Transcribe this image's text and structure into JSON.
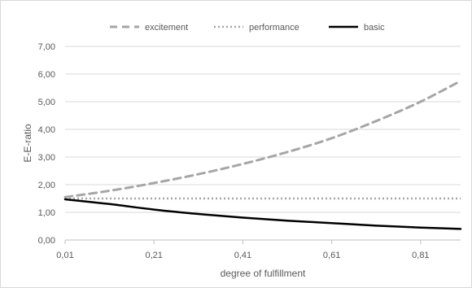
{
  "chart_data": {
    "type": "line",
    "xlabel": "degree of fulfillment",
    "ylabel": "E-E-ratio",
    "xlim": [
      0.01,
      0.9
    ],
    "ylim": [
      0,
      7
    ],
    "x_ticks": [
      "0,01",
      "0,21",
      "0,41",
      "0,61",
      "0,81"
    ],
    "x_tick_values": [
      0.01,
      0.21,
      0.41,
      0.61,
      0.81
    ],
    "y_ticks": [
      "0,00",
      "1,00",
      "2,00",
      "3,00",
      "4,00",
      "5,00",
      "6,00",
      "7,00"
    ],
    "y_tick_values": [
      0,
      1,
      2,
      3,
      4,
      5,
      6,
      7
    ],
    "grid": "horizontal",
    "legend_position": "top",
    "series": [
      {
        "name": "excitement",
        "style": "dashed",
        "color": "#a6a6a6",
        "x": [
          0.01,
          0.11,
          0.21,
          0.31,
          0.41,
          0.51,
          0.61,
          0.71,
          0.81,
          0.9
        ],
        "y": [
          1.55,
          1.78,
          2.06,
          2.38,
          2.75,
          3.18,
          3.68,
          4.3,
          5.0,
          5.75
        ]
      },
      {
        "name": "performance",
        "style": "dotted",
        "color": "#a6a6a6",
        "x": [
          0.01,
          0.9
        ],
        "y": [
          1.5,
          1.5
        ]
      },
      {
        "name": "basic",
        "style": "solid",
        "color": "#000000",
        "x": [
          0.01,
          0.11,
          0.21,
          0.31,
          0.41,
          0.51,
          0.61,
          0.71,
          0.81,
          0.9
        ],
        "y": [
          1.47,
          1.3,
          1.1,
          0.94,
          0.81,
          0.7,
          0.61,
          0.52,
          0.45,
          0.4
        ]
      }
    ]
  }
}
